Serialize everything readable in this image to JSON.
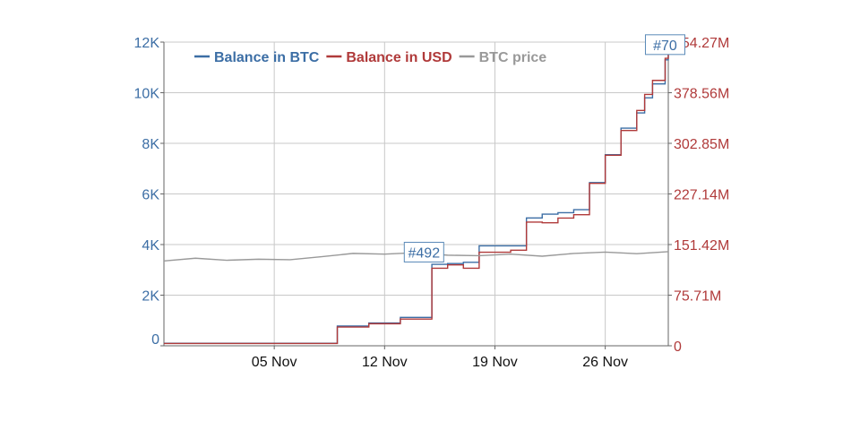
{
  "chart_data": {
    "type": "line",
    "x_axis": {
      "type": "date",
      "range": [
        "2013-10-29",
        "2013-11-30"
      ],
      "ticks": [
        {
          "date": "2013-11-05",
          "label": "05 Nov"
        },
        {
          "date": "2013-11-12",
          "label": "12 Nov"
        },
        {
          "date": "2013-11-19",
          "label": "19 Nov"
        },
        {
          "date": "2013-11-26",
          "label": "26 Nov"
        }
      ]
    },
    "y_left": {
      "range": [
        0,
        12000
      ],
      "tick_values": [
        0,
        2000,
        4000,
        6000,
        8000,
        10000,
        12000
      ],
      "tick_labels": [
        "0",
        "2K",
        "4K",
        "6K",
        "8K",
        "10K",
        "12K"
      ],
      "color": "#3c6ea5"
    },
    "y_right": {
      "range": [
        0,
        454270000
      ],
      "tick_values": [
        0,
        75710000,
        151420000,
        227140000,
        302850000,
        378560000,
        454270000
      ],
      "tick_labels": [
        "0",
        "75.71M",
        "151.42M",
        "227.14M",
        "302.85M",
        "378.56M",
        "454.27M"
      ],
      "color": "#b03a3a"
    },
    "grid": true,
    "legend_position": "top-left",
    "series": [
      {
        "name": "Balance in BTC",
        "axis": "left",
        "color": "#3c6ea5",
        "step": true,
        "points": [
          [
            "2013-10-29",
            100
          ],
          [
            "2013-11-08",
            100
          ],
          [
            "2013-11-09",
            780
          ],
          [
            "2013-11-11",
            900
          ],
          [
            "2013-11-13",
            1120
          ],
          [
            "2013-11-15",
            3220
          ],
          [
            "2013-11-16",
            3250
          ],
          [
            "2013-11-17",
            3300
          ],
          [
            "2013-11-18",
            3950
          ],
          [
            "2013-11-21",
            5050
          ],
          [
            "2013-11-22",
            5200
          ],
          [
            "2013-11-23",
            5260
          ],
          [
            "2013-11-24",
            5380
          ],
          [
            "2013-11-25",
            6450
          ],
          [
            "2013-11-26",
            7550
          ],
          [
            "2013-11-27",
            8600
          ],
          [
            "2013-11-28",
            9200
          ],
          [
            "2013-11-28.5",
            9800
          ],
          [
            "2013-11-29",
            10350
          ],
          [
            "2013-11-29.8",
            11300
          ],
          [
            "2013-11-30",
            12000
          ]
        ]
      },
      {
        "name": "Balance in USD",
        "axis": "right",
        "color": "#b03a3a",
        "step": true,
        "points": [
          [
            "2013-10-29",
            3500000
          ],
          [
            "2013-11-08",
            3500000
          ],
          [
            "2013-11-09",
            28000000
          ],
          [
            "2013-11-11",
            33000000
          ],
          [
            "2013-11-13",
            40000000
          ],
          [
            "2013-11-15",
            116000000
          ],
          [
            "2013-11-16",
            121000000
          ],
          [
            "2013-11-17",
            116000000
          ],
          [
            "2013-11-18",
            140000000
          ],
          [
            "2013-11-20",
            143000000
          ],
          [
            "2013-11-21",
            185000000
          ],
          [
            "2013-11-22",
            184000000
          ],
          [
            "2013-11-23",
            191000000
          ],
          [
            "2013-11-24",
            196000000
          ],
          [
            "2013-11-25",
            243000000
          ],
          [
            "2013-11-26",
            285000000
          ],
          [
            "2013-11-27",
            322000000
          ],
          [
            "2013-11-28",
            352000000
          ],
          [
            "2013-11-28.5",
            376000000
          ],
          [
            "2013-11-29",
            397000000
          ],
          [
            "2013-11-29.8",
            430000000
          ],
          [
            "2013-11-30",
            452000000
          ]
        ]
      },
      {
        "name": "BTC price",
        "axis": "left",
        "color": "#999999",
        "step": false,
        "points": [
          [
            "2013-10-29",
            3350
          ],
          [
            "2013-10-31",
            3460
          ],
          [
            "2013-11-02",
            3380
          ],
          [
            "2013-11-04",
            3420
          ],
          [
            "2013-11-06",
            3400
          ],
          [
            "2013-11-08",
            3520
          ],
          [
            "2013-11-10",
            3650
          ],
          [
            "2013-11-12",
            3620
          ],
          [
            "2013-11-14",
            3680
          ],
          [
            "2013-11-16",
            3580
          ],
          [
            "2013-11-18",
            3560
          ],
          [
            "2013-11-20",
            3620
          ],
          [
            "2013-11-22",
            3540
          ],
          [
            "2013-11-24",
            3650
          ],
          [
            "2013-11-26",
            3700
          ],
          [
            "2013-11-28",
            3640
          ],
          [
            "2013-11-30",
            3720
          ]
        ]
      }
    ],
    "annotations": [
      {
        "label": "#492",
        "date": "2013-11-14.5",
        "value": 3700
      },
      {
        "label": "#70",
        "date": "2013-11-29.8",
        "value": 11900
      }
    ]
  }
}
